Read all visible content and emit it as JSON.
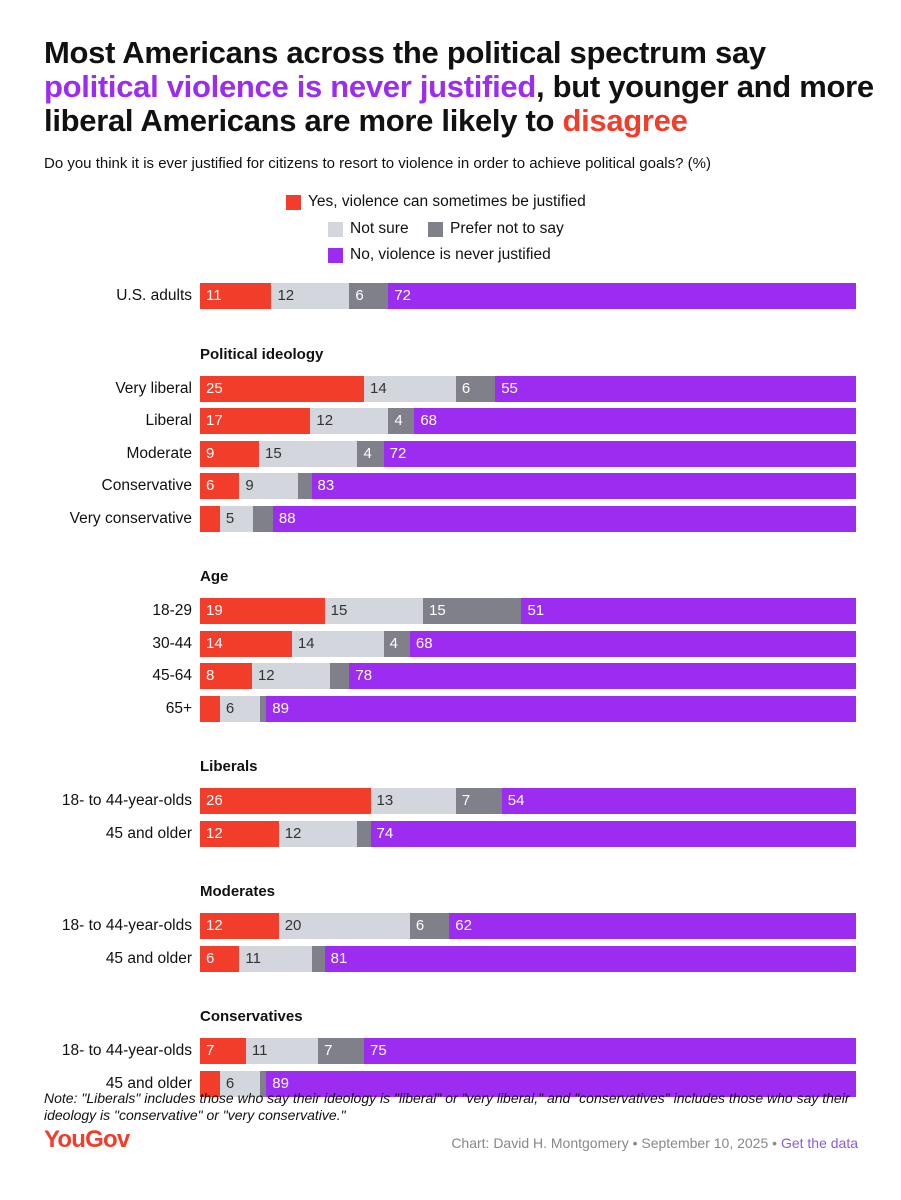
{
  "title": {
    "part1": "Most Americans across the political spectrum say ",
    "highlight1": "political violence is never justified",
    "part2": ", but younger and more liberal Americans are more likely to ",
    "highlight2": "disagree"
  },
  "subtitle": "Do you think it is ever justified for citizens to resort to violence in order to achieve political goals? (%)",
  "colors": {
    "yes": "#f23d2a",
    "not_sure": "#d4d6de",
    "prefer_not": "#7f8089",
    "no": "#9b2cf0",
    "title_purple": "#9b2cf0",
    "title_red": "#f23d2a"
  },
  "chart_data": {
    "type": "bar",
    "orientation": "horizontal",
    "stacked": true,
    "xlim": [
      0,
      100
    ],
    "legend": [
      "Yes, violence can sometimes be justified",
      "Not sure",
      "Prefer not to say",
      "No, violence is never justified"
    ],
    "legend_position": "top",
    "groups": [
      {
        "heading": "",
        "rows": [
          {
            "label": "U.S. adults",
            "values": [
              11,
              12,
              6,
              72
            ],
            "shown": [
              "11",
              "12",
              "6",
              "72"
            ]
          }
        ]
      },
      {
        "heading": "Political ideology",
        "rows": [
          {
            "label": "Very liberal",
            "values": [
              25,
              14,
              6,
              55
            ],
            "shown": [
              "25",
              "14",
              "6",
              "55"
            ]
          },
          {
            "label": "Liberal",
            "values": [
              17,
              12,
              4,
              68
            ],
            "shown": [
              "17",
              "12",
              "4",
              "68"
            ]
          },
          {
            "label": "Moderate",
            "values": [
              9,
              15,
              4,
              72
            ],
            "shown": [
              "9",
              "15",
              "4",
              "72"
            ]
          },
          {
            "label": "Conservative",
            "values": [
              6,
              9,
              2,
              83
            ],
            "shown": [
              "6",
              "9",
              "",
              "83"
            ]
          },
          {
            "label": "Very conservative",
            "values": [
              3,
              5,
              3,
              88
            ],
            "shown": [
              "",
              "5",
              "",
              "88"
            ]
          }
        ]
      },
      {
        "heading": "Age",
        "rows": [
          {
            "label": "18-29",
            "values": [
              19,
              15,
              15,
              51
            ],
            "shown": [
              "19",
              "15",
              "15",
              "51"
            ]
          },
          {
            "label": "30-44",
            "values": [
              14,
              14,
              4,
              68
            ],
            "shown": [
              "14",
              "14",
              "4",
              "68"
            ]
          },
          {
            "label": "45-64",
            "values": [
              8,
              12,
              3,
              78
            ],
            "shown": [
              "8",
              "12",
              "",
              "78"
            ]
          },
          {
            "label": "65+",
            "values": [
              3,
              6,
              1,
              89
            ],
            "shown": [
              "",
              "6",
              "",
              "89"
            ]
          }
        ]
      },
      {
        "heading": "Liberals",
        "rows": [
          {
            "label": "18- to 44-year-olds",
            "values": [
              26,
              13,
              7,
              54
            ],
            "shown": [
              "26",
              "13",
              "7",
              "54"
            ]
          },
          {
            "label": "45 and older",
            "values": [
              12,
              12,
              2,
              74
            ],
            "shown": [
              "12",
              "12",
              "",
              "74"
            ]
          }
        ]
      },
      {
        "heading": "Moderates",
        "rows": [
          {
            "label": "18- to 44-year-olds",
            "values": [
              12,
              20,
              6,
              62
            ],
            "shown": [
              "12",
              "20",
              "6",
              "62"
            ]
          },
          {
            "label": "45 and older",
            "values": [
              6,
              11,
              2,
              81
            ],
            "shown": [
              "6",
              "11",
              "",
              "81"
            ]
          }
        ]
      },
      {
        "heading": "Conservatives",
        "rows": [
          {
            "label": "18- to 44-year-olds",
            "values": [
              7,
              11,
              7,
              75
            ],
            "shown": [
              "7",
              "11",
              "7",
              "75"
            ]
          },
          {
            "label": "45 and older",
            "values": [
              3,
              6,
              1,
              89
            ],
            "shown": [
              "",
              "6",
              "",
              "89"
            ]
          }
        ]
      }
    ]
  },
  "note": "Note: \"Liberals\" includes those who say their ideology is \"liberal\" or \"very liberal,\" and \"conservatives\" includes those who say their ideology is \"conservative\" or \"very conservative.\"",
  "footer": {
    "logo": "YouGov",
    "credit": "Chart: David H. Montgomery • September 10, 2025 • ",
    "link": "Get the data"
  }
}
